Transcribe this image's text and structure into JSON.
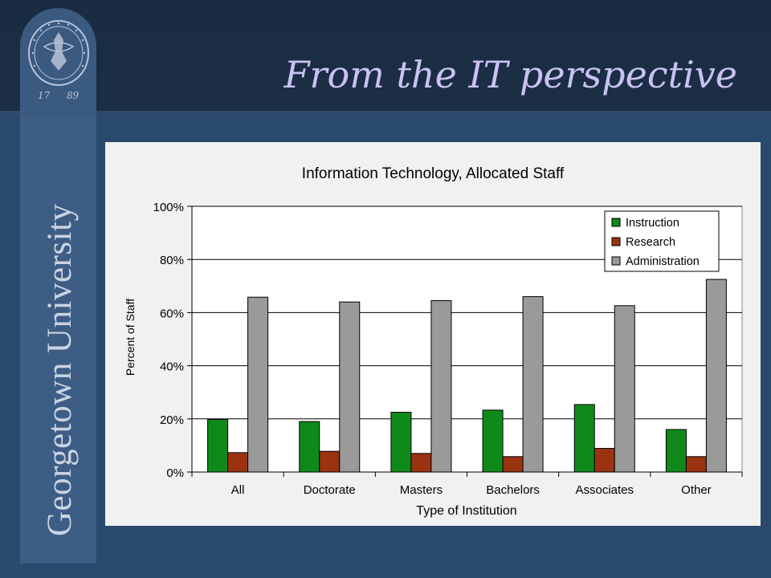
{
  "slide": {
    "title": "From the IT perspective",
    "sidebar_text": "Georgetown University",
    "seal_years": [
      "17",
      "89"
    ]
  },
  "colors": {
    "instruction": "#0f8a1a",
    "research": "#9b3310",
    "administration": "#9a9a9a"
  },
  "chart_data": {
    "type": "bar",
    "title": "Information Technology, Allocated Staff",
    "xlabel": "Type of Institution",
    "ylabel": "Percent of Staff",
    "categories": [
      "All",
      "Doctorate",
      "Masters",
      "Bachelors",
      "Associates",
      "Other"
    ],
    "ylim": [
      0,
      100
    ],
    "yticks": [
      "0%",
      "20%",
      "40%",
      "60%",
      "80%",
      "100%"
    ],
    "series": [
      {
        "name": "Instruction",
        "values": [
          19.8,
          19.0,
          22.5,
          23.3,
          25.4,
          16.0
        ]
      },
      {
        "name": "Research",
        "values": [
          7.3,
          7.8,
          7.0,
          5.8,
          8.9,
          5.8
        ]
      },
      {
        "name": "Administration",
        "values": [
          65.8,
          64.0,
          64.5,
          66.0,
          62.6,
          72.5
        ]
      }
    ],
    "legend": "top-right",
    "grid": "horizontal"
  }
}
